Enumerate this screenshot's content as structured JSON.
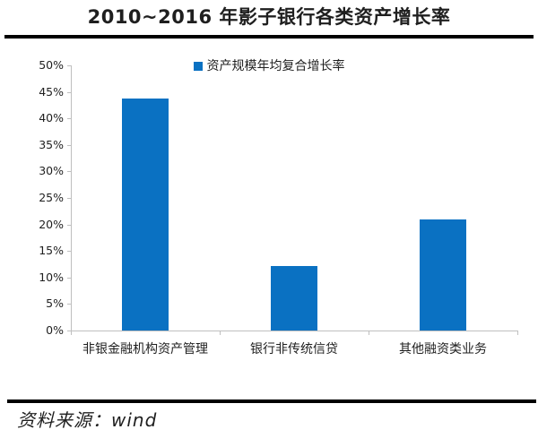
{
  "title": "2010~2016 年影子银行各类资产增长率",
  "source": "资料来源：wind",
  "legend": {
    "label": "资产规模年均复合增长率"
  },
  "colors": {
    "bar": "#0a71c2",
    "axis": "#bfbfbf",
    "rule": "#000000",
    "text": "#1f1f1f"
  },
  "chart_data": {
    "type": "bar",
    "title": "2010~2016 年影子银行各类资产增长率",
    "categories": [
      "非银金融机构资产管理",
      "银行非传统信贷",
      "其他融资类业务"
    ],
    "values": [
      43.7,
      12.1,
      21.0
    ],
    "series_name": "资产规模年均复合增长率",
    "xlabel": "",
    "ylabel": "",
    "ylim": [
      0,
      50
    ],
    "ytick_step": 5,
    "ytick_format": "percent",
    "grid": false,
    "legend_position": "top-center",
    "bar_color": "#0a71c2"
  }
}
